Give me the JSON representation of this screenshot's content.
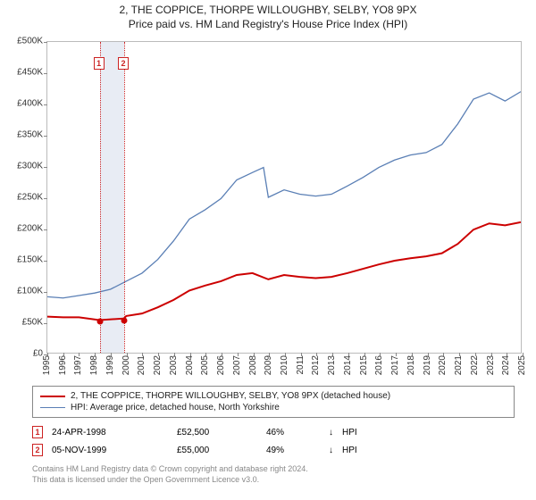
{
  "title": "2, THE COPPICE, THORPE WILLOUGHBY, SELBY, YO8 9PX",
  "subtitle": "Price paid vs. HM Land Registry's House Price Index (HPI)",
  "chart": {
    "type": "line",
    "background_color": "#ffffff",
    "border_color": "#bbbbbb",
    "ylim": [
      0,
      500000
    ],
    "ytick_step": 50000,
    "ytick_prefix": "£",
    "ytick_suffix": "K",
    "ytick_divisor": 1000,
    "xlim": [
      1995,
      2025
    ],
    "years": [
      1995,
      1996,
      1997,
      1998,
      1999,
      2000,
      2001,
      2002,
      2003,
      2004,
      2005,
      2006,
      2007,
      2008,
      2009,
      2010,
      2011,
      2012,
      2013,
      2014,
      2015,
      2016,
      2017,
      2018,
      2019,
      2020,
      2021,
      2022,
      2023,
      2024,
      2025
    ],
    "sale_band_color": "#e8ecf4",
    "sale_line_color": "#cc2222",
    "sale_marker_text_color": "#cc2222",
    "sale_dot_color": "#cc0000",
    "series": [
      {
        "id": "price_paid",
        "color": "#cc0000",
        "width": 2,
        "points": [
          [
            1995,
            58000
          ],
          [
            1996,
            57000
          ],
          [
            1997,
            57000
          ],
          [
            1998.3,
            52500
          ],
          [
            1999.85,
            55000
          ],
          [
            2000,
            59000
          ],
          [
            2001,
            63000
          ],
          [
            2002,
            73000
          ],
          [
            2003,
            85000
          ],
          [
            2004,
            100000
          ],
          [
            2005,
            108000
          ],
          [
            2006,
            115000
          ],
          [
            2007,
            125000
          ],
          [
            2008,
            128000
          ],
          [
            2009,
            118000
          ],
          [
            2010,
            125000
          ],
          [
            2011,
            122000
          ],
          [
            2012,
            120000
          ],
          [
            2013,
            122000
          ],
          [
            2014,
            128000
          ],
          [
            2015,
            135000
          ],
          [
            2016,
            142000
          ],
          [
            2017,
            148000
          ],
          [
            2018,
            152000
          ],
          [
            2019,
            155000
          ],
          [
            2020,
            160000
          ],
          [
            2021,
            175000
          ],
          [
            2022,
            198000
          ],
          [
            2023,
            208000
          ],
          [
            2024,
            205000
          ],
          [
            2025,
            210000
          ]
        ]
      },
      {
        "id": "hpi",
        "color": "#5a7fb5",
        "width": 1.3,
        "points": [
          [
            1995,
            90000
          ],
          [
            1996,
            88000
          ],
          [
            1997,
            92000
          ],
          [
            1998,
            96000
          ],
          [
            1999,
            102000
          ],
          [
            2000,
            115000
          ],
          [
            2001,
            128000
          ],
          [
            2002,
            150000
          ],
          [
            2003,
            180000
          ],
          [
            2004,
            215000
          ],
          [
            2005,
            230000
          ],
          [
            2006,
            248000
          ],
          [
            2007,
            278000
          ],
          [
            2008,
            290000
          ],
          [
            2008.7,
            298000
          ],
          [
            2009,
            250000
          ],
          [
            2010,
            262000
          ],
          [
            2011,
            255000
          ],
          [
            2012,
            252000
          ],
          [
            2013,
            255000
          ],
          [
            2014,
            268000
          ],
          [
            2015,
            282000
          ],
          [
            2016,
            298000
          ],
          [
            2017,
            310000
          ],
          [
            2018,
            318000
          ],
          [
            2019,
            322000
          ],
          [
            2020,
            335000
          ],
          [
            2021,
            368000
          ],
          [
            2022,
            408000
          ],
          [
            2023,
            418000
          ],
          [
            2024,
            405000
          ],
          [
            2025,
            420000
          ]
        ]
      }
    ],
    "sales": [
      {
        "index": 1,
        "year": 1998.31,
        "price": 52500
      },
      {
        "index": 2,
        "year": 1999.85,
        "price": 55000
      }
    ]
  },
  "legend": {
    "items": [
      {
        "color": "#cc0000",
        "width": 2,
        "label": "2, THE COPPICE, THORPE WILLOUGHBY, SELBY, YO8 9PX (detached house)"
      },
      {
        "color": "#5a7fb5",
        "width": 1.3,
        "label": "HPI: Average price, detached house, North Yorkshire"
      }
    ]
  },
  "sales_table": {
    "rows": [
      {
        "index": 1,
        "date": "24-APR-1998",
        "price": "£52,500",
        "pct": "46%",
        "arrow": "↓",
        "against": "HPI"
      },
      {
        "index": 2,
        "date": "05-NOV-1999",
        "price": "£55,000",
        "pct": "49%",
        "arrow": "↓",
        "against": "HPI"
      }
    ]
  },
  "footer": {
    "line1": "Contains HM Land Registry data © Crown copyright and database right 2024.",
    "line2": "This data is licensed under the Open Government Licence v3.0."
  }
}
